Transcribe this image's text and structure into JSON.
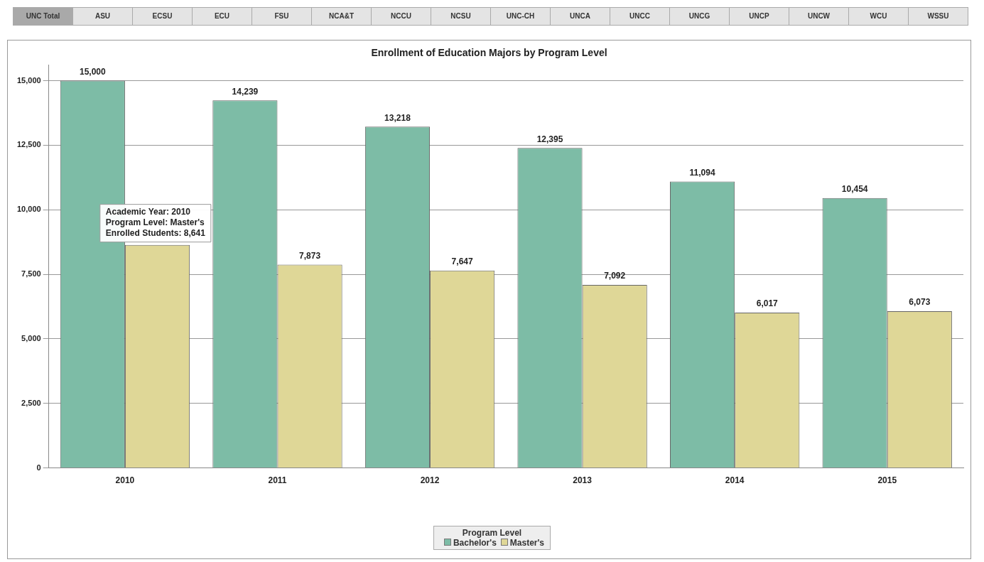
{
  "chart_data": {
    "type": "bar",
    "title": "Enrollment of Education Majors by Program Level",
    "legend_title": "Program Level",
    "categories": [
      "2010",
      "2011",
      "2012",
      "2013",
      "2014",
      "2015"
    ],
    "series": [
      {
        "name": "Bachelor's",
        "color": "#7dbca6",
        "values": [
          15000,
          14239,
          13218,
          12395,
          11094,
          10454
        ],
        "value_labels": [
          "15,000",
          "14,239",
          "13,218",
          "12,395",
          "11,094",
          "10,454"
        ]
      },
      {
        "name": "Master's",
        "color": "#dfd797",
        "values": [
          8641,
          7873,
          7647,
          7092,
          6017,
          6073
        ],
        "value_labels": [
          null,
          "7,873",
          "7,647",
          "7,092",
          "6,017",
          "6,073"
        ]
      }
    ],
    "ylim": [
      0,
      15600
    ],
    "yticks": [
      {
        "value": 0,
        "label": "0"
      },
      {
        "value": 2500,
        "label": "2,500"
      },
      {
        "value": 5000,
        "label": "5,000"
      },
      {
        "value": 7500,
        "label": "7,500"
      },
      {
        "value": 10000,
        "label": "10,000"
      },
      {
        "value": 12500,
        "label": "12,500"
      },
      {
        "value": 15000,
        "label": "15,000"
      }
    ],
    "grid": "y",
    "legend": "bottom",
    "annotations": [
      "UNC Total",
      "ASU",
      "ECSU",
      "ECU",
      "FSU",
      "NCA&T",
      "NCCU",
      "NCSU",
      "UNC-CH",
      "UNCA",
      "UNCC",
      "UNCG",
      "UNCP",
      "UNCW",
      "WCU",
      "WSSU",
      {
        "text": "Academic Year: 2010\nProgram Level: Master's\nEnrolled Students: 8,641",
        "x": "2010",
        "y": 8641
      }
    ]
  }
}
